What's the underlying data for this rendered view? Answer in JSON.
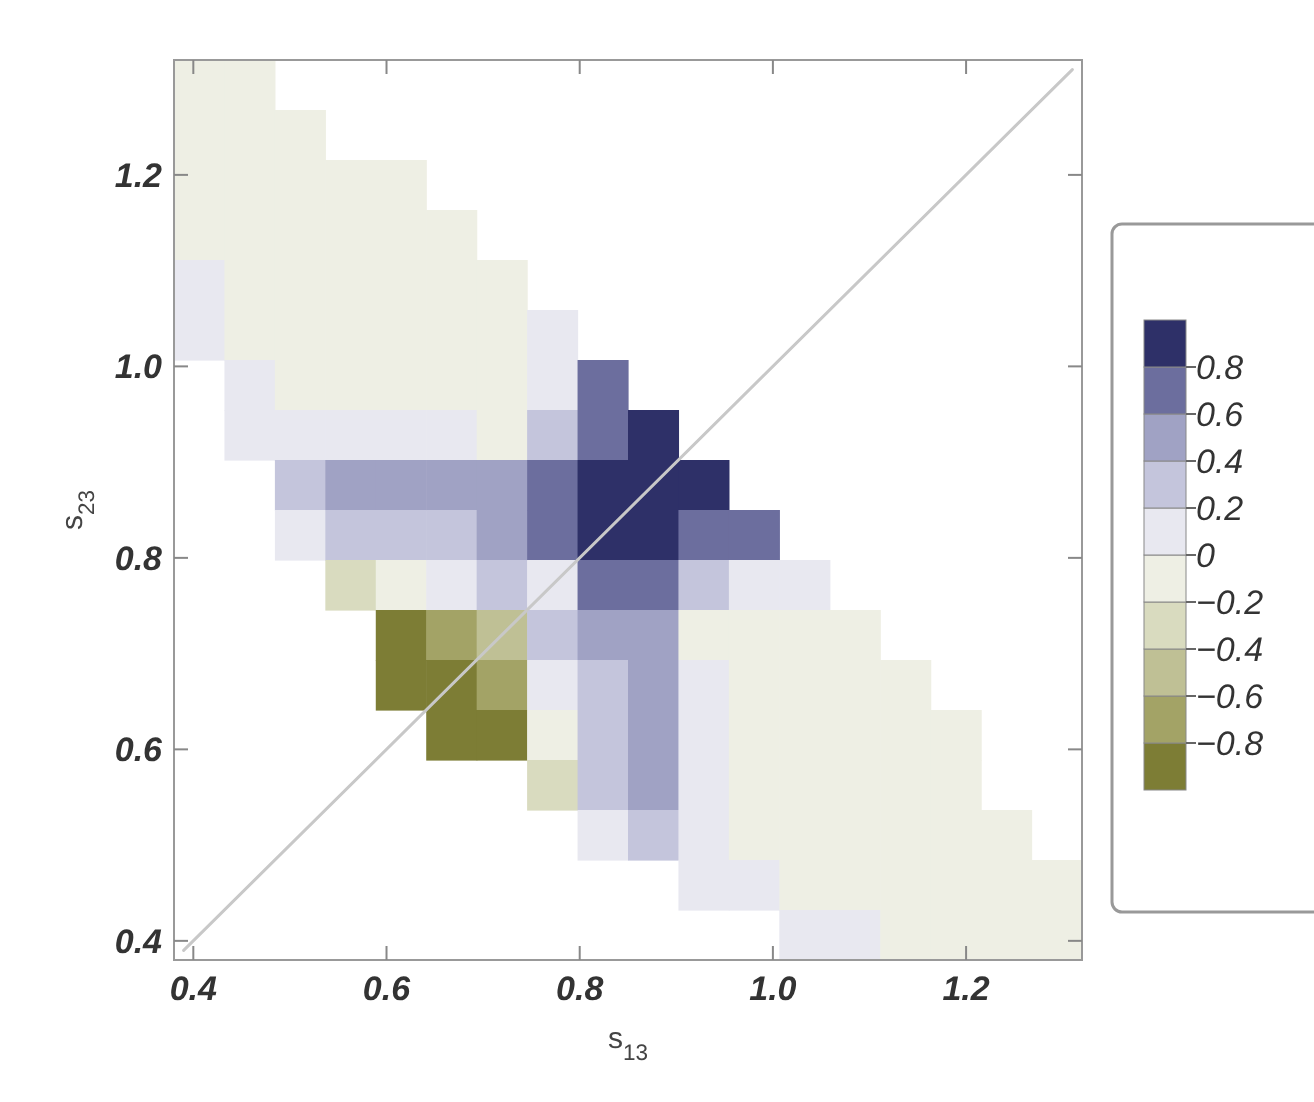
{
  "chart_data": {
    "type": "heatmap",
    "xlabel": "s$_{13}$",
    "ylabel": "s$_{23}$",
    "xlim": [
      0.38,
      1.32
    ],
    "ylim": [
      0.38,
      1.32
    ],
    "xticks": [
      0.4,
      0.6,
      0.8,
      {
        "value": 1,
        "label": "1.0"
      },
      1.2
    ],
    "yticks": [
      0.4,
      0.6,
      0.8,
      {
        "value": 1,
        "label": "1.0"
      },
      1.2
    ],
    "clim": [
      -1,
      1
    ],
    "cticks": [
      {
        "value": -0.8,
        "label": "−0.8"
      },
      {
        "value": -0.6,
        "label": "−0.6"
      },
      {
        "value": -0.4,
        "label": "−0.4"
      },
      {
        "value": -0.2,
        "label": "−0.2"
      },
      0,
      0.2,
      0.4,
      0.6,
      0.8
    ],
    "colors": [
      "#7d7d35",
      "#a3a366",
      "#bfc095",
      "#d9dbbf",
      "#eeefe4",
      "#e8e8f0",
      "#c4c5dc",
      "#a0a2c4",
      "#6c6e9e",
      "#2e3068"
    ],
    "cells": [
      [
        -0.1,
        -0.1,
        null,
        null,
        null,
        null,
        null,
        null,
        null,
        null,
        null,
        null,
        null,
        null,
        null,
        null,
        null,
        null
      ],
      [
        -0.1,
        -0.1,
        -0.1,
        null,
        null,
        null,
        null,
        null,
        null,
        null,
        null,
        null,
        null,
        null,
        null,
        null,
        null,
        null
      ],
      [
        -0.1,
        -0.1,
        -0.1,
        -0.1,
        -0.1,
        null,
        null,
        null,
        null,
        null,
        null,
        null,
        null,
        null,
        null,
        null,
        null,
        null
      ],
      [
        -0.1,
        -0.1,
        -0.1,
        -0.1,
        -0.1,
        -0.1,
        null,
        null,
        null,
        null,
        null,
        null,
        null,
        null,
        null,
        null,
        null,
        null
      ],
      [
        0.1,
        -0.1,
        -0.1,
        -0.1,
        -0.1,
        -0.1,
        -0.1,
        null,
        null,
        null,
        null,
        null,
        null,
        null,
        null,
        null,
        null,
        null
      ],
      [
        0.1,
        -0.1,
        -0.1,
        -0.1,
        -0.1,
        -0.1,
        -0.1,
        0.1,
        null,
        null,
        null,
        null,
        null,
        null,
        null,
        null,
        null,
        null
      ],
      [
        null,
        0.1,
        -0.1,
        -0.1,
        -0.1,
        -0.1,
        -0.1,
        0.1,
        0.7,
        null,
        null,
        null,
        null,
        null,
        null,
        null,
        null,
        null
      ],
      [
        null,
        0.1,
        0.1,
        0.1,
        0.1,
        0.1,
        -0.1,
        0.3,
        0.7,
        0.9,
        null,
        null,
        null,
        null,
        null,
        null,
        null,
        null
      ],
      [
        null,
        null,
        0.3,
        0.5,
        0.5,
        0.5,
        0.5,
        0.7,
        0.9,
        0.9,
        0.9,
        null,
        null,
        null,
        null,
        null,
        null,
        null
      ],
      [
        null,
        null,
        0.1,
        0.3,
        0.3,
        0.3,
        0.5,
        0.7,
        0.9,
        0.9,
        0.7,
        0.7,
        null,
        null,
        null,
        null,
        null,
        null
      ],
      [
        null,
        null,
        null,
        -0.3,
        -0.1,
        0.1,
        0.3,
        0.1,
        0.7,
        0.7,
        0.3,
        0.1,
        0.1,
        null,
        null,
        null,
        null,
        null
      ],
      [
        null,
        null,
        null,
        null,
        -0.9,
        -0.7,
        -0.5,
        0.3,
        0.5,
        0.5,
        -0.1,
        -0.1,
        -0.1,
        -0.1,
        null,
        null,
        null,
        null
      ],
      [
        null,
        null,
        null,
        null,
        -0.9,
        -0.9,
        -0.7,
        0.1,
        0.3,
        0.5,
        0.1,
        -0.1,
        -0.1,
        -0.1,
        -0.1,
        null,
        null,
        null
      ],
      [
        null,
        null,
        null,
        null,
        null,
        -0.9,
        -0.9,
        -0.1,
        0.3,
        0.5,
        0.1,
        -0.1,
        -0.1,
        -0.1,
        -0.1,
        -0.1,
        null,
        null
      ],
      [
        null,
        null,
        null,
        null,
        null,
        null,
        null,
        -0.3,
        0.3,
        0.5,
        0.1,
        -0.1,
        -0.1,
        -0.1,
        -0.1,
        -0.1,
        null,
        null
      ],
      [
        null,
        null,
        null,
        null,
        null,
        null,
        null,
        null,
        0.1,
        0.3,
        0.1,
        -0.1,
        -0.1,
        -0.1,
        -0.1,
        -0.1,
        -0.1,
        null
      ],
      [
        null,
        null,
        null,
        null,
        null,
        null,
        null,
        null,
        null,
        null,
        0.1,
        0.1,
        -0.1,
        -0.1,
        -0.1,
        -0.1,
        -0.1,
        -0.1
      ],
      [
        null,
        null,
        null,
        null,
        null,
        null,
        null,
        null,
        null,
        null,
        null,
        null,
        0.1,
        0.1,
        -0.1,
        -0.1,
        -0.1,
        -0.1
      ]
    ],
    "series": [
      {
        "type": "line",
        "x": [
          0.39,
          1.31
        ],
        "values": [
          0.39,
          1.31
        ],
        "color": "#c8c8c8"
      }
    ]
  }
}
